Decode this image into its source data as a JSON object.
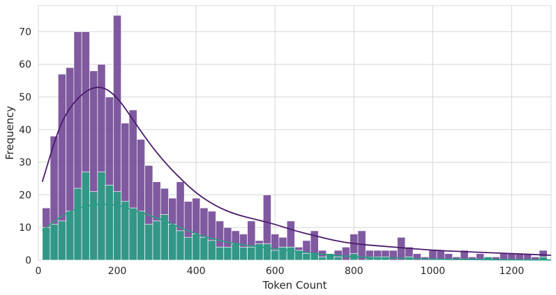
{
  "chart_data": {
    "type": "bar",
    "title": "",
    "xlabel": "Token Count",
    "ylabel": "Frequency",
    "xlim": [
      0,
      1300
    ],
    "ylim": [
      0,
      78
    ],
    "xticks": [
      0,
      200,
      400,
      600,
      800,
      1000,
      1200
    ],
    "yticks": [
      0,
      10,
      20,
      30,
      40,
      50,
      60,
      70
    ],
    "grid": true,
    "legend": "none",
    "bin_width": 20,
    "series": [
      {
        "color": "#6a3d8f",
        "bin_starts": [
          10,
          30,
          50,
          70,
          90,
          110,
          130,
          150,
          170,
          190,
          210,
          230,
          250,
          270,
          290,
          310,
          330,
          350,
          370,
          390,
          410,
          430,
          450,
          470,
          490,
          510,
          530,
          550,
          570,
          590,
          610,
          630,
          650,
          670,
          690,
          710,
          730,
          750,
          770,
          790,
          810,
          830,
          850,
          870,
          890,
          910,
          930,
          950,
          970,
          990,
          1010,
          1030,
          1050,
          1070,
          1090,
          1110,
          1130,
          1150,
          1170,
          1190,
          1210,
          1230,
          1250,
          1270
        ],
        "values": [
          16,
          38,
          57,
          59,
          70,
          70,
          58,
          60,
          50,
          75,
          42,
          46,
          37,
          29,
          24,
          22,
          19,
          24,
          18,
          19,
          16,
          15,
          12,
          10,
          9,
          8,
          12,
          6,
          20,
          8,
          7,
          12,
          4,
          6,
          9,
          3,
          2,
          3,
          4,
          8,
          9,
          3,
          3,
          3,
          3,
          7,
          4,
          2,
          1,
          3,
          3,
          2,
          1,
          3,
          1,
          2,
          1,
          1,
          2,
          2,
          2,
          2,
          1,
          3
        ],
        "kde": [
          [
            10,
            24
          ],
          [
            50,
            40
          ],
          [
            80,
            47
          ],
          [
            120,
            52
          ],
          [
            160,
            53.5
          ],
          [
            200,
            50
          ],
          [
            240,
            43
          ],
          [
            280,
            36
          ],
          [
            320,
            30
          ],
          [
            360,
            25
          ],
          [
            400,
            20.5
          ],
          [
            450,
            16.5
          ],
          [
            500,
            14
          ],
          [
            550,
            12.5
          ],
          [
            600,
            11
          ],
          [
            650,
            9
          ],
          [
            700,
            7.5
          ],
          [
            750,
            6
          ],
          [
            800,
            5
          ],
          [
            900,
            4
          ],
          [
            1000,
            3
          ],
          [
            1100,
            2.5
          ],
          [
            1200,
            2
          ],
          [
            1300,
            1.5
          ]
        ]
      },
      {
        "color": "#2a9d84",
        "bin_starts": [
          10,
          30,
          50,
          70,
          90,
          110,
          130,
          150,
          170,
          190,
          210,
          230,
          250,
          270,
          290,
          310,
          330,
          350,
          370,
          390,
          410,
          430,
          450,
          470,
          490,
          510,
          530,
          550,
          570,
          590,
          610,
          630,
          650,
          670,
          690,
          710,
          730,
          750,
          770,
          790,
          810,
          830,
          850,
          870,
          890,
          910,
          930,
          950,
          970,
          990,
          1010,
          1030,
          1050,
          1070,
          1090,
          1110,
          1130,
          1150,
          1170,
          1190,
          1210,
          1230,
          1250,
          1270
        ],
        "values": [
          10,
          11,
          12,
          15,
          22,
          27,
          21,
          27,
          23,
          21,
          18,
          16,
          15,
          11,
          12,
          14,
          11,
          9,
          7,
          8,
          7,
          6,
          4,
          4,
          5,
          4,
          4,
          5,
          5,
          3,
          4,
          4,
          3,
          2,
          2,
          1,
          2,
          1,
          0,
          2,
          0,
          1,
          1,
          1,
          0,
          0,
          1,
          0,
          0,
          0,
          0,
          0,
          0,
          0,
          0,
          0,
          1,
          0,
          0,
          0,
          0,
          0,
          0,
          1
        ],
        "kde": [
          [
            10,
            9
          ],
          [
            50,
            13
          ],
          [
            100,
            16
          ],
          [
            150,
            17.2
          ],
          [
            200,
            17
          ],
          [
            250,
            15
          ],
          [
            300,
            13
          ],
          [
            350,
            10.5
          ],
          [
            400,
            8
          ],
          [
            450,
            6.2
          ],
          [
            500,
            5
          ],
          [
            550,
            4.2
          ],
          [
            600,
            3.5
          ],
          [
            650,
            2.8
          ],
          [
            700,
            2
          ],
          [
            750,
            1.5
          ],
          [
            800,
            1
          ],
          [
            900,
            0.6
          ],
          [
            1000,
            0.3
          ],
          [
            1100,
            0.2
          ],
          [
            1200,
            0.1
          ],
          [
            1300,
            0.05
          ]
        ]
      }
    ]
  }
}
